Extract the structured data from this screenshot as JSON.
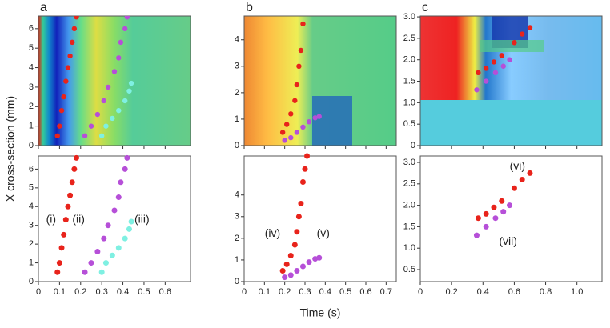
{
  "chart_data": [
    {
      "type": "scatter",
      "panel": "a",
      "ylabel": "X cross-section (mm)",
      "xlim": [
        0,
        0.72
      ],
      "xticks": [
        0,
        0.1,
        0.2,
        0.3,
        0.4,
        0.5,
        0.6
      ],
      "top_ylim": [
        0,
        6.65
      ],
      "top_yticks": [
        0,
        1,
        2,
        3,
        4,
        5,
        6
      ],
      "ylim": [
        0,
        6.7
      ],
      "yticks": [
        0,
        1,
        2,
        3,
        4,
        5,
        6
      ],
      "series": [
        {
          "color": "#e8231b",
          "x": [
            0.09,
            0.1,
            0.11,
            0.12,
            0.13,
            0.14,
            0.15,
            0.16,
            0.17,
            0.18
          ],
          "y": [
            0.5,
            1,
            1.8,
            2.5,
            3.3,
            4,
            4.6,
            5.3,
            6,
            6.6
          ]
        },
        {
          "color": "#b64fd8",
          "x": [
            0.22,
            0.25,
            0.28,
            0.31,
            0.33,
            0.36,
            0.38,
            0.39,
            0.41,
            0.42
          ],
          "y": [
            0.5,
            1,
            1.6,
            2.3,
            3,
            3.8,
            4.5,
            5.3,
            6,
            6.6
          ]
        },
        {
          "color": "#7ff0e2",
          "x": [
            0.3,
            0.32,
            0.35,
            0.38,
            0.41,
            0.43,
            0.44
          ],
          "y": [
            0.5,
            1,
            1.4,
            1.8,
            2.3,
            2.8,
            3.2
          ]
        }
      ],
      "annotations": [
        {
          "text": "(i)",
          "x": 0.06,
          "y": 3.3
        },
        {
          "text": "(ii)",
          "x": 0.19,
          "y": 3.3
        },
        {
          "text": "(iii)",
          "x": 0.49,
          "y": 3.3
        }
      ]
    },
    {
      "type": "scatter",
      "panel": "b",
      "xlabel": "Time (s)",
      "xlim": [
        0,
        0.75
      ],
      "xticks": [
        0,
        0.1,
        0.2,
        0.3,
        0.4,
        0.5,
        0.6,
        0.7
      ],
      "top_ylim": [
        0,
        4.9
      ],
      "top_yticks": [
        0,
        1,
        2,
        3,
        4
      ],
      "ylim": [
        0,
        5.8
      ],
      "yticks": [
        0,
        1,
        2,
        3,
        4
      ],
      "series": [
        {
          "color": "#e8231b",
          "x": [
            0.19,
            0.21,
            0.23,
            0.25,
            0.26,
            0.27,
            0.28,
            0.29,
            0.3,
            0.31
          ],
          "y": [
            0.5,
            0.8,
            1.2,
            1.7,
            2.3,
            3,
            3.6,
            4.6,
            5.2,
            5.8
          ]
        },
        {
          "color": "#b64fd8",
          "x": [
            0.2,
            0.23,
            0.26,
            0.29,
            0.32,
            0.35,
            0.37
          ],
          "y": [
            0.2,
            0.3,
            0.5,
            0.7,
            0.9,
            1.05,
            1.1
          ]
        }
      ],
      "annotations": [
        {
          "text": "(iv)",
          "x": 0.14,
          "y": 2.2
        },
        {
          "text": "(v)",
          "x": 0.39,
          "y": 2.2
        }
      ]
    },
    {
      "type": "scatter",
      "panel": "c",
      "xlim": [
        0,
        1.16
      ],
      "xticks": [
        0,
        0.2,
        0.4,
        0.6,
        0.8,
        {
          "value": 1,
          "label": "1.0"
        }
      ],
      "top_ylim": [
        0,
        3.02
      ],
      "top_yticks": [
        0,
        0.5,
        {
          "value": 1,
          "label": "1.0"
        },
        1.5,
        {
          "value": 2,
          "label": "2.0"
        },
        2.5,
        {
          "value": 3,
          "label": "3.0"
        }
      ],
      "ylim": [
        0.22,
        3.15
      ],
      "yticks": [
        0.5,
        {
          "value": 1,
          "label": "1.0"
        },
        1.5,
        {
          "value": 2,
          "label": "2.0"
        },
        2.5,
        {
          "value": 3,
          "label": "3.0"
        }
      ],
      "series": [
        {
          "color": "#e8231b",
          "x": [
            0.37,
            0.42,
            0.47,
            0.52,
            0.6,
            0.65,
            0.7
          ],
          "y": [
            1.7,
            1.8,
            1.95,
            2.1,
            2.4,
            2.6,
            2.75
          ]
        },
        {
          "color": "#b64fd8",
          "x": [
            0.36,
            0.42,
            0.48,
            0.53,
            0.57
          ],
          "y": [
            1.3,
            1.5,
            1.7,
            1.85,
            2.0
          ]
        }
      ],
      "annotations": [
        {
          "text": "(vi)",
          "x": 0.62,
          "y": 2.9
        },
        {
          "text": "(vii)",
          "x": 0.56,
          "y": 1.15
        }
      ]
    }
  ]
}
